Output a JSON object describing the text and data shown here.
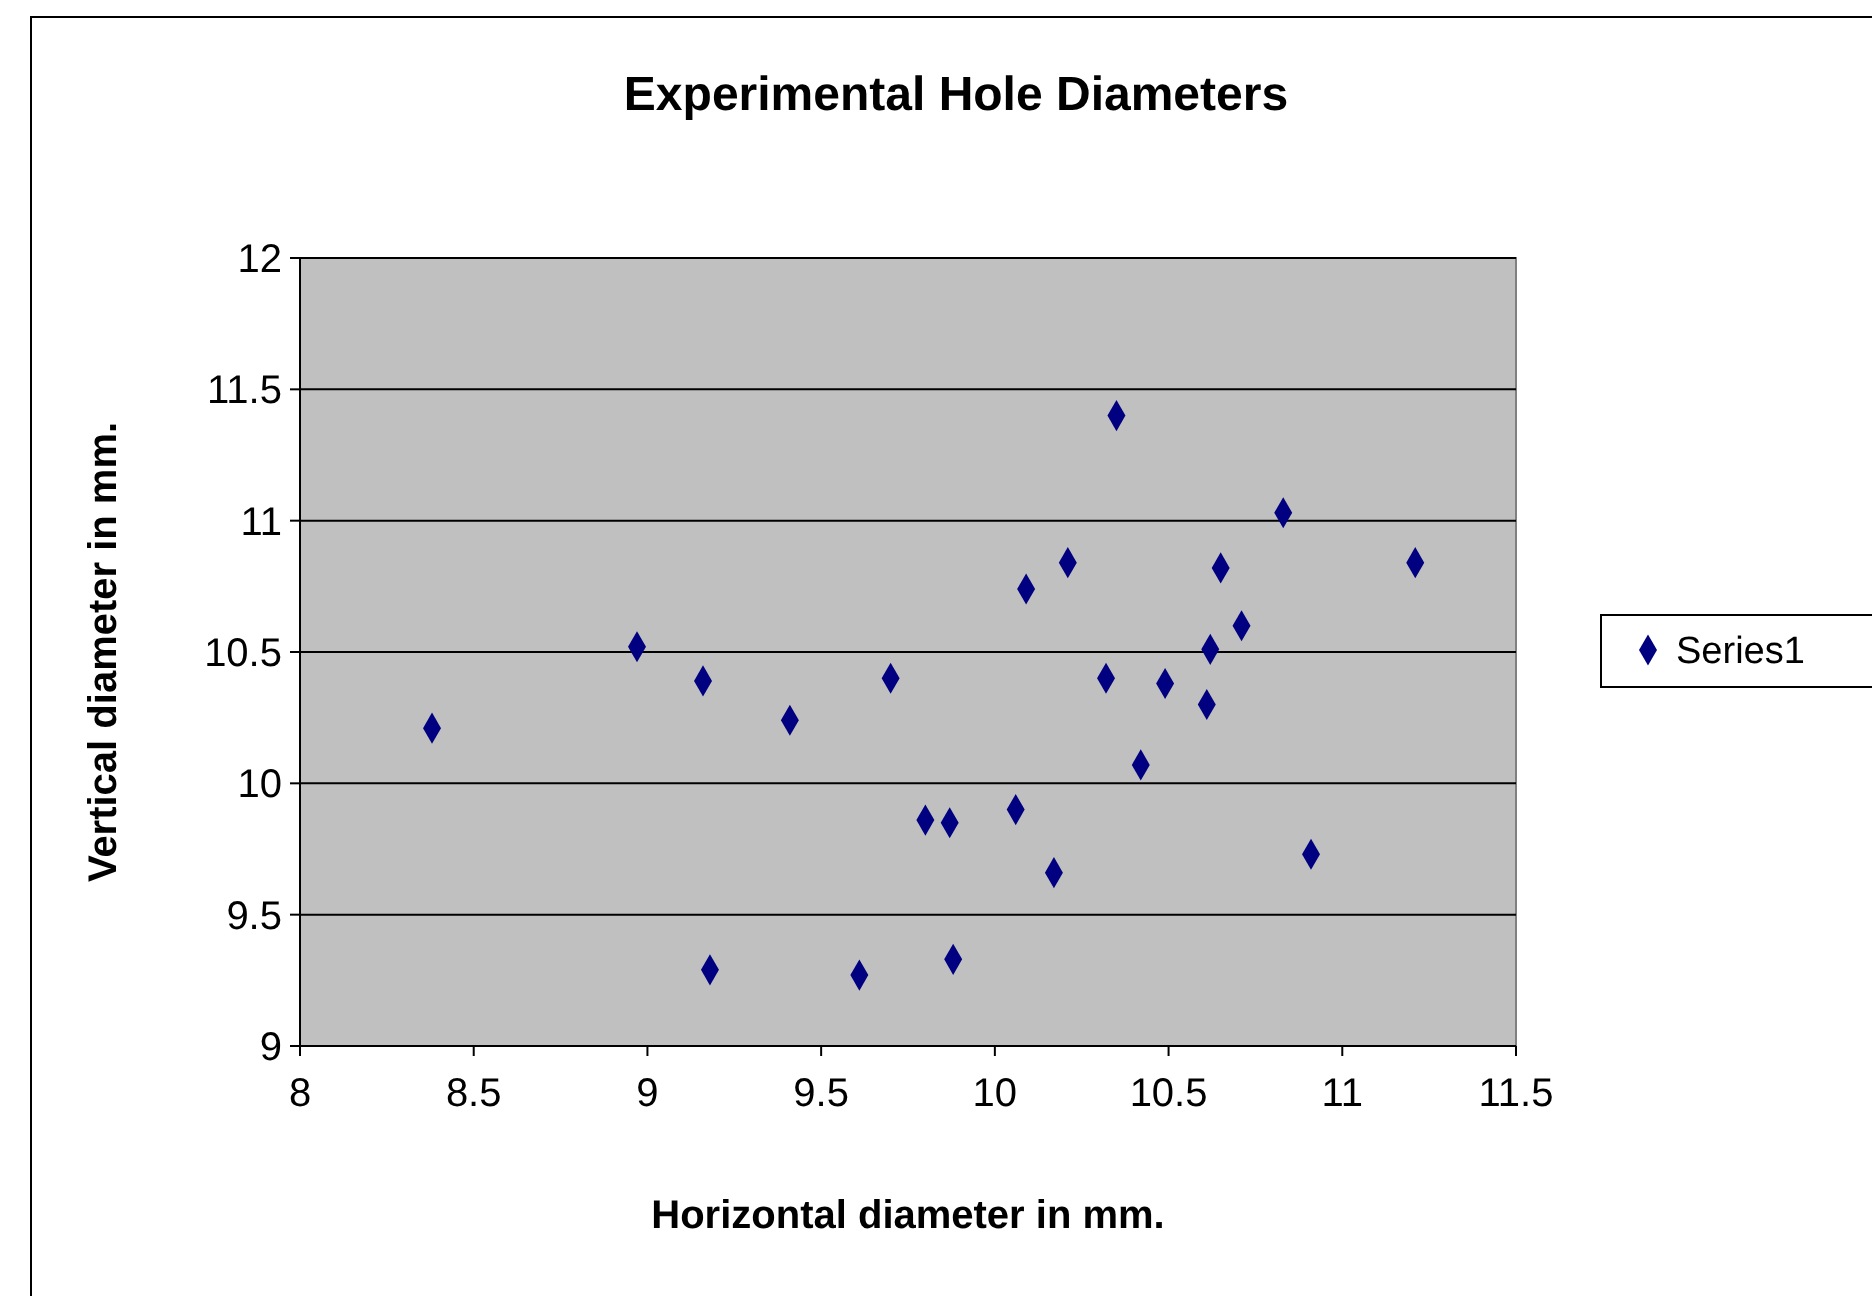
{
  "chart_data": {
    "type": "scatter",
    "title": "Experimental Hole Diameters",
    "xlabel": "Horizontal diameter in mm.",
    "ylabel": "Vertical diameter in mm.",
    "x": [
      8.38,
      8.97,
      9.16,
      9.18,
      9.41,
      9.61,
      9.7,
      9.8,
      9.87,
      9.88,
      10.06,
      10.09,
      10.17,
      10.21,
      10.35,
      10.32,
      10.42,
      10.49,
      10.62,
      10.61,
      10.65,
      10.71,
      10.83,
      10.91,
      11.21
    ],
    "series": [
      {
        "name": "Series1",
        "color": "#000080",
        "values": [
          10.21,
          10.52,
          10.39,
          9.29,
          10.24,
          9.27,
          10.4,
          9.86,
          9.85,
          9.33,
          9.9,
          10.74,
          9.66,
          10.84,
          11.4,
          10.4,
          10.07,
          10.38,
          10.51,
          10.3,
          10.82,
          10.6,
          11.03,
          9.73,
          10.84
        ]
      }
    ],
    "xlim": [
      8,
      11.5
    ],
    "xticks": [
      8,
      8.5,
      9,
      9.5,
      10,
      10.5,
      11,
      11.5
    ],
    "ylim": [
      9,
      12
    ],
    "yticks": [
      9,
      9.5,
      10,
      10.5,
      11,
      11.5,
      12
    ],
    "grid": "y",
    "legend": "right",
    "marker": "diamond"
  }
}
